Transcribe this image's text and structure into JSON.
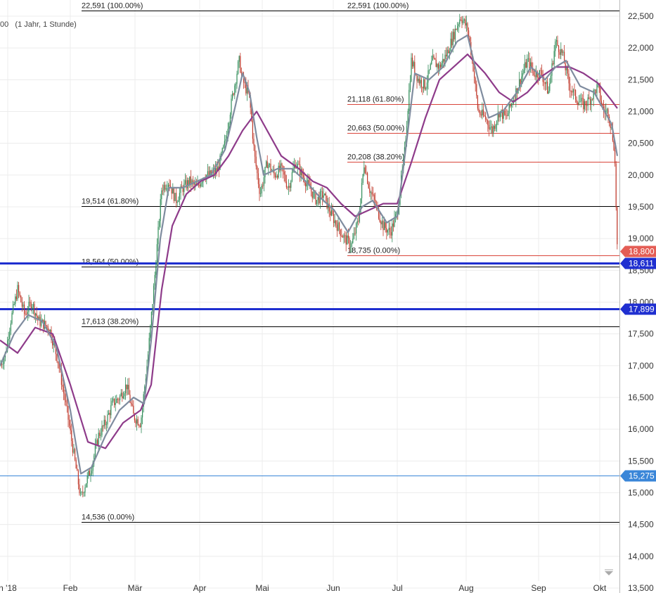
{
  "legend_text": "00   (1 Jahr, 1 Stunde)",
  "colors": {
    "candle_up": "#2e8b57",
    "candle_down": "#c0392b",
    "ma_fast": "#7f8c9f",
    "ma_slow": "#8e3b8a",
    "fib_black": "#000000",
    "fib_red": "#d9453b",
    "support_blue": "#1f2fd0",
    "support_light": "#3a86d8",
    "grid": "#ececec"
  },
  "chart_data": {
    "type": "candlestick",
    "ylim": [
      13500,
      22750
    ],
    "y_ticks": [
      "13,500",
      "14,000",
      "14,500",
      "15,000",
      "15,500",
      "16,000",
      "16,500",
      "17,000",
      "17,500",
      "18,000",
      "18,500",
      "19,000",
      "19,500",
      "20,000",
      "20,500",
      "21,000",
      "21,500",
      "22,000",
      "22,500"
    ],
    "x_month_labels": [
      "n '18",
      "Feb",
      "Mär",
      "Apr",
      "Mai",
      "Jun",
      "Jul",
      "Aug",
      "Sep",
      "Okt"
    ],
    "price_path": [
      [
        0,
        17000
      ],
      [
        8,
        17200
      ],
      [
        15,
        17700
      ],
      [
        25,
        18200
      ],
      [
        35,
        17800
      ],
      [
        45,
        18000
      ],
      [
        55,
        17700
      ],
      [
        70,
        17600
      ],
      [
        82,
        17100
      ],
      [
        95,
        16300
      ],
      [
        105,
        15600
      ],
      [
        115,
        14900
      ],
      [
        120,
        15100
      ],
      [
        130,
        15400
      ],
      [
        140,
        15900
      ],
      [
        150,
        16100
      ],
      [
        160,
        16400
      ],
      [
        170,
        16500
      ],
      [
        180,
        16700
      ],
      [
        190,
        16200
      ],
      [
        200,
        16100
      ],
      [
        210,
        17100
      ],
      [
        220,
        18400
      ],
      [
        230,
        19800
      ],
      [
        240,
        19900
      ],
      [
        250,
        19600
      ],
      [
        260,
        19800
      ],
      [
        270,
        19900
      ],
      [
        280,
        19800
      ],
      [
        290,
        20000
      ],
      [
        300,
        20000
      ],
      [
        310,
        20100
      ],
      [
        320,
        20500
      ],
      [
        330,
        21200
      ],
      [
        340,
        21800
      ],
      [
        345,
        21500
      ],
      [
        355,
        21200
      ],
      [
        362,
        20300
      ],
      [
        370,
        19700
      ],
      [
        380,
        20200
      ],
      [
        390,
        20000
      ],
      [
        400,
        20100
      ],
      [
        410,
        19800
      ],
      [
        420,
        20200
      ],
      [
        430,
        20000
      ],
      [
        440,
        19800
      ],
      [
        450,
        19600
      ],
      [
        460,
        19700
      ],
      [
        470,
        19400
      ],
      [
        480,
        19200
      ],
      [
        490,
        19000
      ],
      [
        500,
        18900
      ],
      [
        510,
        19300
      ],
      [
        518,
        20200
      ],
      [
        525,
        19800
      ],
      [
        535,
        19500
      ],
      [
        545,
        19200
      ],
      [
        555,
        19100
      ],
      [
        565,
        19400
      ],
      [
        575,
        20300
      ],
      [
        585,
        21800
      ],
      [
        595,
        21500
      ],
      [
        605,
        21400
      ],
      [
        615,
        21800
      ],
      [
        625,
        21700
      ],
      [
        635,
        21900
      ],
      [
        645,
        22200
      ],
      [
        655,
        22500
      ],
      [
        665,
        22300
      ],
      [
        672,
        21800
      ],
      [
        680,
        21000
      ],
      [
        690,
        20900
      ],
      [
        700,
        20700
      ],
      [
        710,
        21000
      ],
      [
        720,
        20900
      ],
      [
        730,
        21200
      ],
      [
        740,
        21500
      ],
      [
        750,
        21800
      ],
      [
        760,
        21600
      ],
      [
        770,
        21600
      ],
      [
        780,
        21300
      ],
      [
        790,
        22100
      ],
      [
        800,
        21900
      ],
      [
        810,
        21400
      ],
      [
        820,
        21200
      ],
      [
        830,
        21100
      ],
      [
        840,
        21200
      ],
      [
        850,
        21400
      ],
      [
        858,
        21000
      ],
      [
        865,
        21000
      ],
      [
        870,
        20700
      ],
      [
        874,
        20400
      ],
      [
        876,
        19600
      ],
      [
        878,
        18800
      ]
    ],
    "ma_fast_values": [
      [
        0,
        17000
      ],
      [
        20,
        17500
      ],
      [
        40,
        17800
      ],
      [
        60,
        17700
      ],
      [
        80,
        17300
      ],
      [
        100,
        16300
      ],
      [
        115,
        15300
      ],
      [
        130,
        15400
      ],
      [
        150,
        15900
      ],
      [
        170,
        16300
      ],
      [
        190,
        16500
      ],
      [
        205,
        16400
      ],
      [
        215,
        17400
      ],
      [
        228,
        19000
      ],
      [
        240,
        19800
      ],
      [
        260,
        19800
      ],
      [
        280,
        19900
      ],
      [
        300,
        20000
      ],
      [
        320,
        20400
      ],
      [
        335,
        21100
      ],
      [
        345,
        21600
      ],
      [
        355,
        21300
      ],
      [
        365,
        20600
      ],
      [
        375,
        20000
      ],
      [
        395,
        20100
      ],
      [
        415,
        20100
      ],
      [
        435,
        19900
      ],
      [
        455,
        19650
      ],
      [
        475,
        19450
      ],
      [
        495,
        19100
      ],
      [
        515,
        19500
      ],
      [
        530,
        19600
      ],
      [
        550,
        19250
      ],
      [
        565,
        19350
      ],
      [
        578,
        20500
      ],
      [
        590,
        21600
      ],
      [
        610,
        21500
      ],
      [
        630,
        21700
      ],
      [
        650,
        22100
      ],
      [
        665,
        22200
      ],
      [
        680,
        21500
      ],
      [
        695,
        20900
      ],
      [
        715,
        21000
      ],
      [
        735,
        21300
      ],
      [
        755,
        21700
      ],
      [
        775,
        21500
      ],
      [
        790,
        21700
      ],
      [
        805,
        21800
      ],
      [
        825,
        21400
      ],
      [
        845,
        21300
      ],
      [
        860,
        21000
      ],
      [
        870,
        20800
      ],
      [
        878,
        20300
      ]
    ],
    "ma_slow_values": [
      [
        0,
        17400
      ],
      [
        25,
        17200
      ],
      [
        50,
        17600
      ],
      [
        75,
        17500
      ],
      [
        100,
        16700
      ],
      [
        125,
        15800
      ],
      [
        150,
        15700
      ],
      [
        175,
        16100
      ],
      [
        200,
        16300
      ],
      [
        215,
        16700
      ],
      [
        230,
        18200
      ],
      [
        245,
        19200
      ],
      [
        265,
        19700
      ],
      [
        285,
        19900
      ],
      [
        305,
        20000
      ],
      [
        325,
        20300
      ],
      [
        345,
        20700
      ],
      [
        365,
        21000
      ],
      [
        380,
        20700
      ],
      [
        400,
        20300
      ],
      [
        425,
        20100
      ],
      [
        445,
        19900
      ],
      [
        465,
        19800
      ],
      [
        485,
        19550
      ],
      [
        505,
        19350
      ],
      [
        525,
        19450
      ],
      [
        545,
        19550
      ],
      [
        565,
        19550
      ],
      [
        585,
        20200
      ],
      [
        605,
        20900
      ],
      [
        625,
        21500
      ],
      [
        645,
        21700
      ],
      [
        665,
        21900
      ],
      [
        690,
        21600
      ],
      [
        710,
        21300
      ],
      [
        730,
        21150
      ],
      [
        750,
        21300
      ],
      [
        770,
        21550
      ],
      [
        790,
        21700
      ],
      [
        810,
        21700
      ],
      [
        830,
        21600
      ],
      [
        850,
        21450
      ],
      [
        868,
        21200
      ],
      [
        878,
        21050
      ]
    ],
    "fib_levels": [
      {
        "value": 22591,
        "label": "22,591 (100.00%)",
        "x_start": 116,
        "color": "black"
      },
      {
        "value": 22591,
        "label": "22,591 (100.00%)",
        "x_start": 494,
        "color": "black"
      },
      {
        "value": 21118,
        "label": "21,118 (61.80%)",
        "x_start": 494,
        "color": "red"
      },
      {
        "value": 20663,
        "label": "20,663 (50.00%)",
        "x_start": 494,
        "color": "red"
      },
      {
        "value": 20208,
        "label": "20,208 (38.20%)",
        "x_start": 494,
        "color": "red"
      },
      {
        "value": 19514,
        "label": "19,514 (61.80%)",
        "x_start": 116,
        "color": "black"
      },
      {
        "value": 18735,
        "label": "18,735 (0.00%)",
        "x_start": 494,
        "color": "red"
      },
      {
        "value": 18564,
        "label": "18,564 (50.00%)",
        "x_start": 116,
        "color": "black"
      },
      {
        "value": 17613,
        "label": "17,613 (38.20%)",
        "x_start": 116,
        "color": "black"
      },
      {
        "value": 14536,
        "label": "14,536 (0.00%)",
        "x_start": 116,
        "color": "black"
      }
    ],
    "support_lines": [
      {
        "value": 18611,
        "label": "18,611",
        "style": "thick"
      },
      {
        "value": 17899,
        "label": "17,899",
        "style": "thick"
      },
      {
        "value": 15275,
        "label": "15,275",
        "style": "thin"
      }
    ],
    "current_price": {
      "value": 18800,
      "label": "18,800"
    }
  }
}
